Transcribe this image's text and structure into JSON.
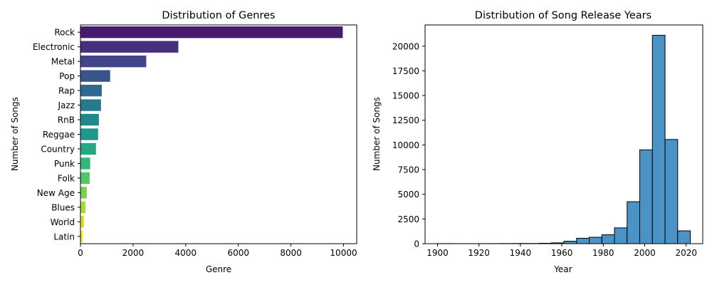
{
  "chart_data": [
    {
      "type": "bar",
      "orientation": "horizontal",
      "title": "Distribution of Genres",
      "xlabel": "Genre",
      "ylabel": "Number of Songs",
      "categories": [
        "Rock",
        "Electronic",
        "Metal",
        "Pop",
        "Rap",
        "Jazz",
        "RnB",
        "Reggae",
        "Country",
        "Punk",
        "Folk",
        "New Age",
        "Blues",
        "World",
        "Latin"
      ],
      "values": [
        9970,
        3720,
        2500,
        1130,
        810,
        780,
        700,
        670,
        590,
        370,
        350,
        240,
        190,
        130,
        90
      ],
      "colors": [
        "#481a6c",
        "#472f7d",
        "#414487",
        "#39568c",
        "#31688e",
        "#2a788e",
        "#23888e",
        "#1f988b",
        "#22a884",
        "#35b779",
        "#54c568",
        "#7ad151",
        "#a5db36",
        "#d2e21b",
        "#fde725"
      ],
      "xlim": [
        0,
        10500
      ],
      "xticks": [
        0,
        2000,
        4000,
        6000,
        8000,
        10000
      ],
      "grid": false
    },
    {
      "type": "histogram",
      "title": "Distribution of Song Release Years",
      "xlabel": "Year",
      "ylabel": "Number of Songs",
      "bin_edges": [
        1900,
        1906.1,
        1912.2,
        1918.3,
        1924.4,
        1930.5,
        1936.6,
        1942.7,
        1948.8,
        1954.9,
        1961,
        1967.1,
        1973.2,
        1979.3,
        1985.4,
        1991.5,
        1997.6,
        2003.7,
        2009.8,
        2015.9,
        2022
      ],
      "values": [
        10,
        5,
        5,
        5,
        10,
        15,
        20,
        20,
        40,
        80,
        250,
        550,
        650,
        900,
        1600,
        4250,
        9500,
        21100,
        10550,
        1300
      ],
      "color": "#4c93c5",
      "xlim": [
        1894,
        2028
      ],
      "ylim": [
        0,
        22150
      ],
      "xticks": [
        1900,
        1920,
        1940,
        1960,
        1980,
        2000,
        2020
      ],
      "yticks": [
        0,
        2500,
        5000,
        7500,
        10000,
        12500,
        15000,
        17500,
        20000
      ],
      "grid": false
    }
  ]
}
